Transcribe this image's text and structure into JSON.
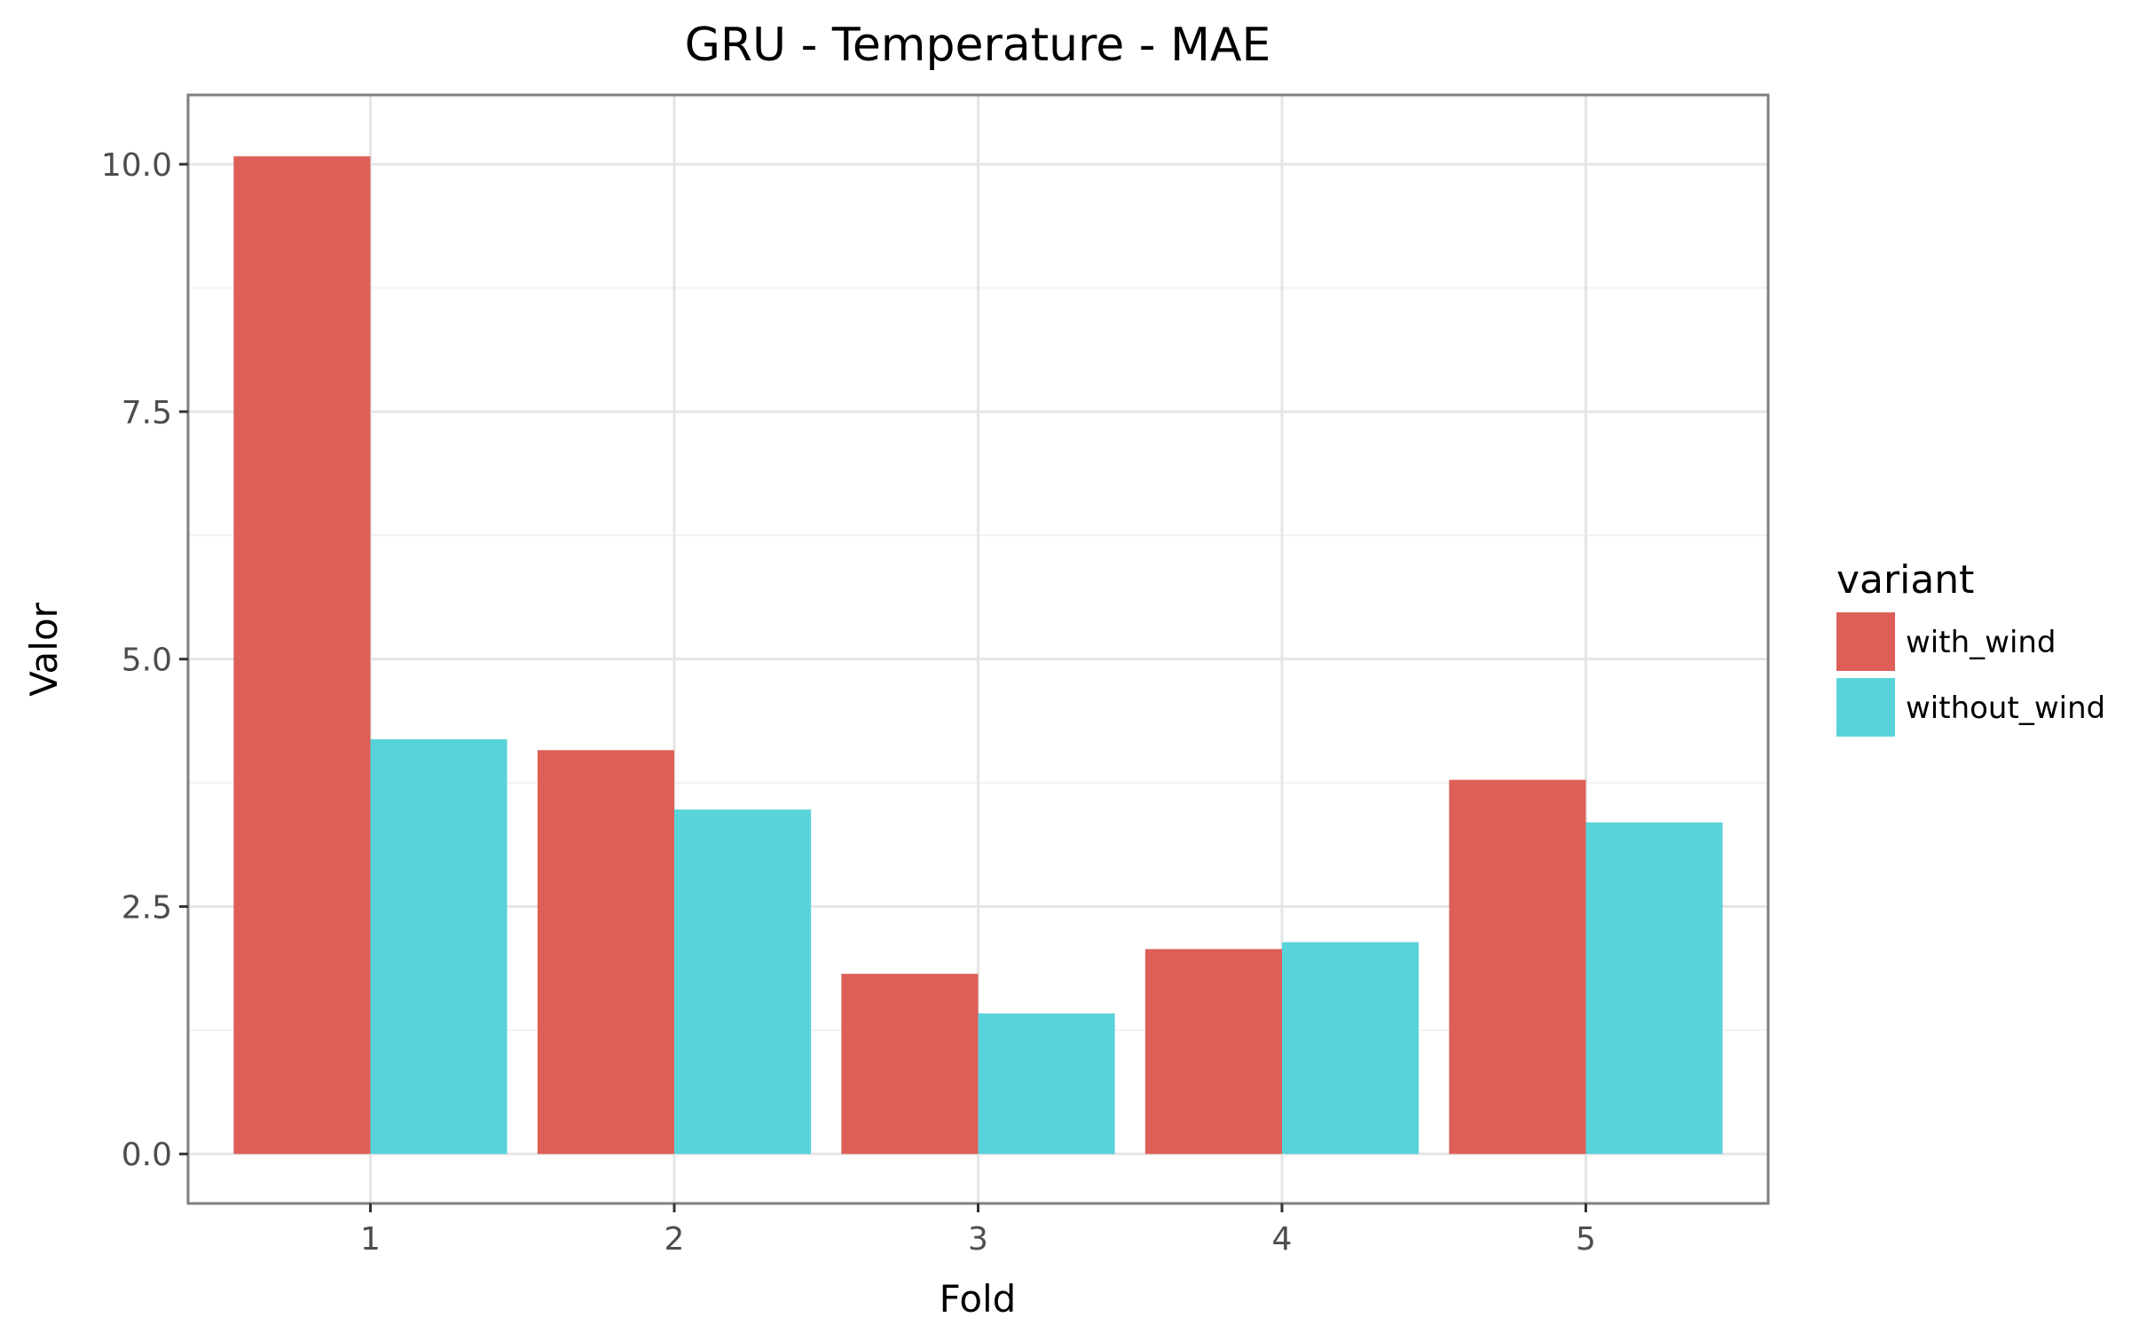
{
  "chart_data": {
    "type": "bar",
    "title": "GRU - Temperature - MAE",
    "xlabel": "Fold",
    "ylabel": "Valor",
    "categories": [
      "1",
      "2",
      "3",
      "4",
      "5"
    ],
    "series": [
      {
        "name": "with_wind",
        "color": "#DE5F57",
        "values": [
          10.08,
          4.08,
          1.82,
          2.07,
          3.78
        ]
      },
      {
        "name": "without_wind",
        "color": "#59D3DA",
        "values": [
          4.19,
          3.48,
          1.42,
          2.14,
          3.35
        ]
      }
    ],
    "ylim": [
      -0.5,
      10.7
    ],
    "yticks": [
      0.0,
      2.5,
      5.0,
      7.5,
      10.0
    ],
    "ytick_labels": [
      "0.0",
      "2.5",
      "5.0",
      "7.5",
      "10.0"
    ],
    "grid": true,
    "legend": {
      "title": "variant",
      "position": "right"
    }
  }
}
